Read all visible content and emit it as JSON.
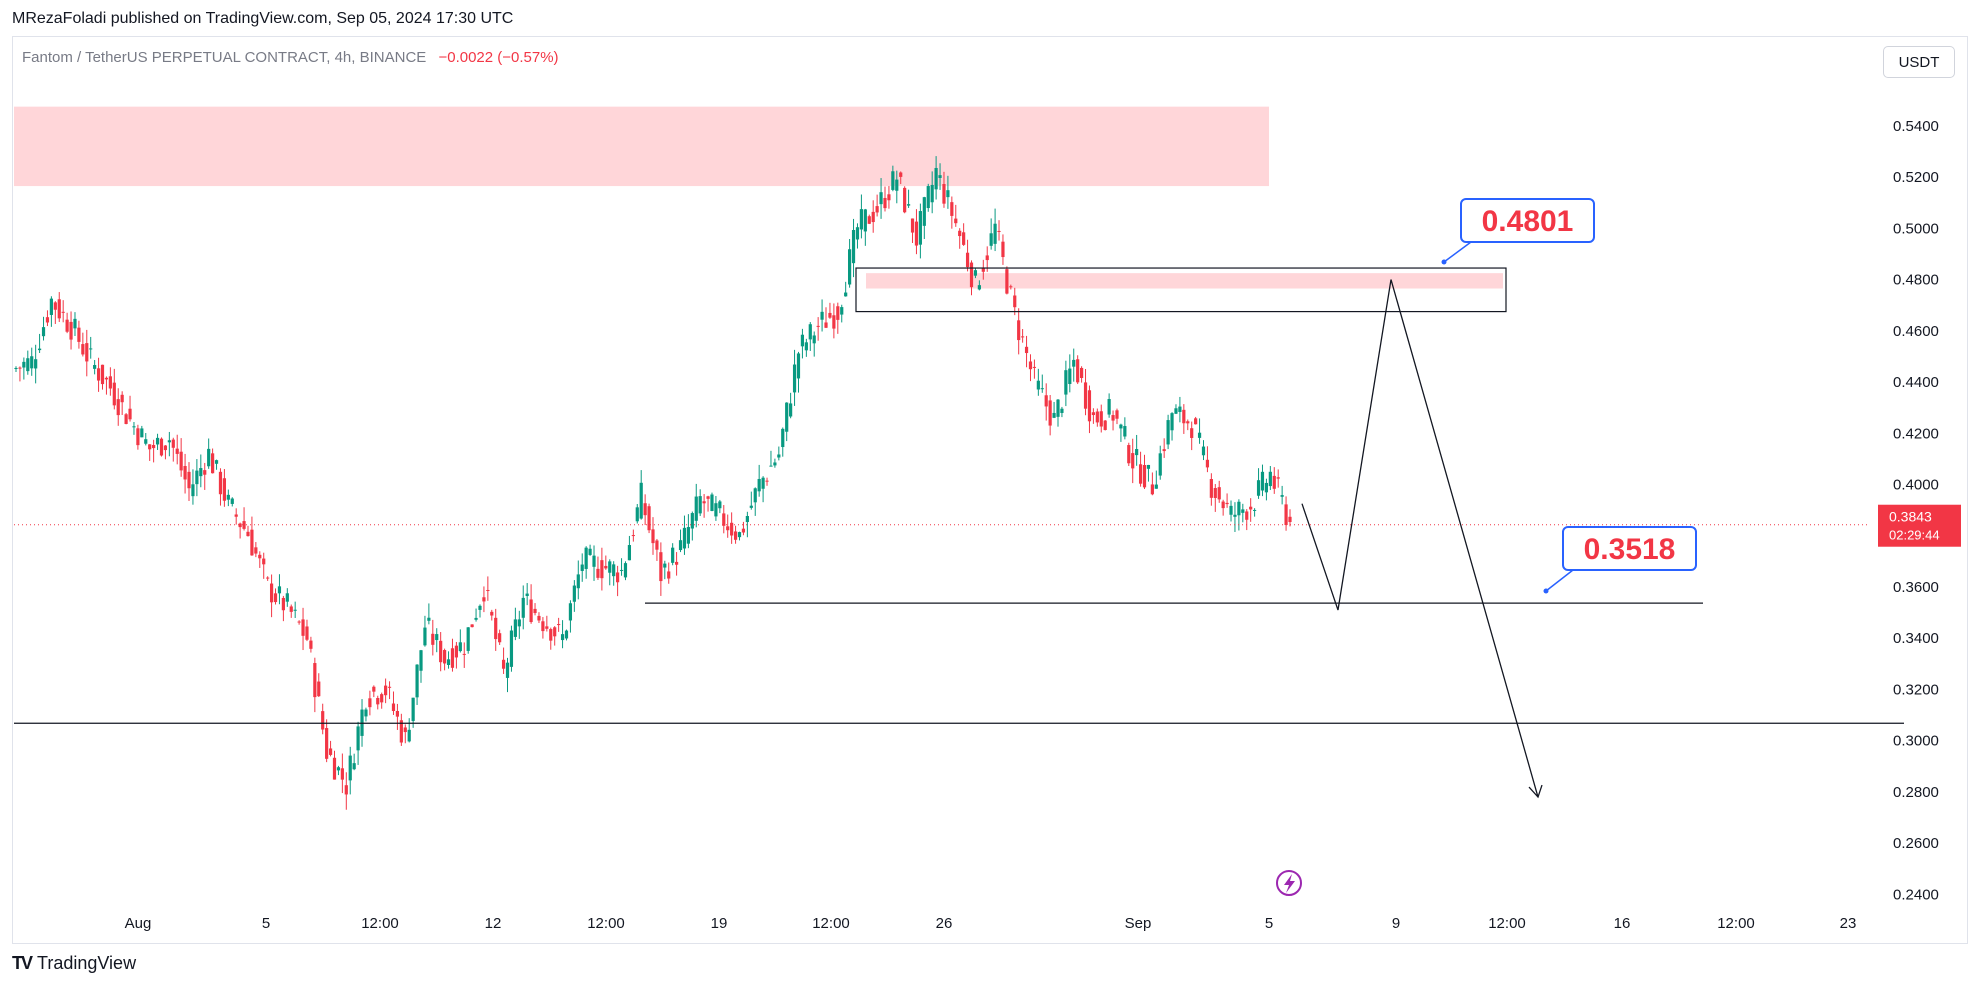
{
  "publisher_line": "MRezaFoladi published on TradingView.com, Sep 05, 2024 17:30 UTC",
  "symbol": {
    "name": "Fantom / TetherUS PERPETUAL CONTRACT, 4h, BINANCE",
    "change": "−0.0022 (−0.57%)"
  },
  "currency_button": "USDT",
  "footer_brand": "TradingView",
  "colors": {
    "up": "#089981",
    "down": "#f23645",
    "zone": "#ffd6d9",
    "label_text": "#f23645",
    "label_border": "#2962ff",
    "lightning": "#9c27b0"
  },
  "chart_data": {
    "type": "candlestick",
    "ylim": [
      0.23,
      0.554
    ],
    "y_ticks": [
      "0.5400",
      "0.5200",
      "0.5000",
      "0.4800",
      "0.4600",
      "0.4400",
      "0.4200",
      "0.4000",
      "0.3600",
      "0.3400",
      "0.3200",
      "0.3000",
      "0.2800",
      "0.2600",
      "0.2400"
    ],
    "x_ticks": [
      "Aug",
      "5",
      "12:00",
      "12",
      "12:00",
      "19",
      "12:00",
      "26",
      "Sep",
      "5",
      "9",
      "12:00",
      "16",
      "12:00",
      "23"
    ],
    "last_price": {
      "value": 0.3843,
      "label": "0.3843",
      "countdown": "02:29:44"
    },
    "annotations": [
      {
        "label": "0.4801",
        "price": 0.4801
      },
      {
        "label": "0.3518",
        "price": 0.3518
      }
    ],
    "zones": [
      {
        "from_price": 0.5165,
        "to_price": 0.5475
      },
      {
        "from_price": 0.4765,
        "to_price": 0.4825
      }
    ],
    "boxes": [
      {
        "from_price": 0.4675,
        "to_price": 0.4845
      }
    ],
    "lines": [
      {
        "price": 0.3068
      },
      {
        "price": 0.3537
      }
    ],
    "projection_prices": [
      0.3925,
      0.351,
      0.48,
      0.278
    ],
    "trend": [
      [
        0.445,
        0.448
      ],
      [
        0.448,
        0.472
      ],
      [
        0.472,
        0.462
      ],
      [
        0.462,
        0.448
      ],
      [
        0.448,
        0.438
      ],
      [
        0.438,
        0.425
      ],
      [
        0.425,
        0.414
      ],
      [
        0.414,
        0.418
      ],
      [
        0.418,
        0.398
      ],
      [
        0.398,
        0.412
      ],
      [
        0.412,
        0.392
      ],
      [
        0.392,
        0.381
      ],
      [
        0.381,
        0.36
      ],
      [
        0.36,
        0.352
      ],
      [
        0.352,
        0.34
      ],
      [
        0.34,
        0.296
      ],
      [
        0.296,
        0.283
      ],
      [
        0.283,
        0.318
      ],
      [
        0.318,
        0.32
      ],
      [
        0.32,
        0.3
      ],
      [
        0.3,
        0.345
      ],
      [
        0.345,
        0.332
      ],
      [
        0.332,
        0.338
      ],
      [
        0.338,
        0.36
      ],
      [
        0.36,
        0.326
      ],
      [
        0.326,
        0.355
      ],
      [
        0.355,
        0.347
      ],
      [
        0.347,
        0.34
      ],
      [
        0.34,
        0.37
      ],
      [
        0.37,
        0.368
      ],
      [
        0.368,
        0.366
      ],
      [
        0.366,
        0.395
      ],
      [
        0.395,
        0.365
      ],
      [
        0.365,
        0.375
      ],
      [
        0.375,
        0.394
      ],
      [
        0.394,
        0.388
      ],
      [
        0.388,
        0.38
      ],
      [
        0.38,
        0.4
      ],
      [
        0.4,
        0.412
      ],
      [
        0.412,
        0.452
      ],
      [
        0.452,
        0.462
      ],
      [
        0.462,
        0.468
      ],
      [
        0.468,
        0.5
      ],
      [
        0.5,
        0.508
      ],
      [
        0.508,
        0.52
      ],
      [
        0.52,
        0.496
      ],
      [
        0.496,
        0.522
      ],
      [
        0.522,
        0.502
      ],
      [
        0.502,
        0.478
      ],
      [
        0.478,
        0.5
      ],
      [
        0.5,
        0.466
      ],
      [
        0.466,
        0.44
      ],
      [
        0.44,
        0.425
      ],
      [
        0.425,
        0.448
      ],
      [
        0.448,
        0.426
      ],
      [
        0.426,
        0.428
      ],
      [
        0.428,
        0.41
      ],
      [
        0.41,
        0.4
      ],
      [
        0.4,
        0.428
      ],
      [
        0.428,
        0.424
      ],
      [
        0.424,
        0.4
      ],
      [
        0.4,
        0.388
      ],
      [
        0.388,
        0.392
      ],
      [
        0.392,
        0.404
      ],
      [
        0.404,
        0.385
      ]
    ]
  }
}
